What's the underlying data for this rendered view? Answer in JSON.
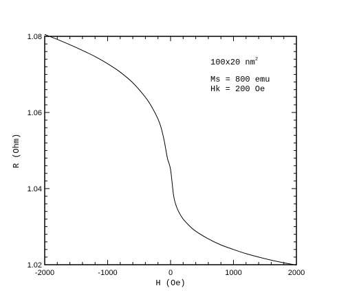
{
  "chart_data": {
    "type": "line",
    "title": "",
    "xlabel": "H (Oe)",
    "ylabel": "R (Ohm)",
    "xlim": [
      -2000,
      2000
    ],
    "ylim": [
      1.02,
      1.08
    ],
    "x_ticks": [
      -2000,
      -1000,
      0,
      1000,
      2000
    ],
    "y_ticks": [
      1.02,
      1.04,
      1.06,
      1.08
    ],
    "x_tick_labels": [
      "-2000",
      "-1000",
      "0",
      "1000",
      "2000"
    ],
    "y_tick_labels": [
      "1.02",
      "1.04",
      "1.06",
      "1.08"
    ],
    "grid": false,
    "annotations": {
      "geometry": "100x20 nm",
      "geometry_sup": "2",
      "ms": "Ms = 800 emu",
      "hk": "Hk = 200 Oe"
    },
    "series": [
      {
        "x": [
          -2000,
          -1800,
          -1600,
          -1400,
          -1200,
          -1000,
          -800,
          -600,
          -400,
          -300,
          -200,
          -150,
          -100,
          -50,
          0,
          50,
          100,
          150,
          200,
          300,
          400,
          600,
          800,
          1000,
          1200,
          1400,
          1600,
          1800,
          2000
        ],
        "y": [
          1.0805,
          1.0792,
          1.0778,
          1.0763,
          1.0747,
          1.0728,
          1.0706,
          1.0678,
          1.064,
          1.0615,
          1.0583,
          1.056,
          1.0525,
          1.048,
          1.045,
          1.038,
          1.035,
          1.0333,
          1.032,
          1.0302,
          1.0288,
          1.0268,
          1.0252,
          1.024,
          1.0229,
          1.022,
          1.0212,
          1.0205,
          1.0199
        ],
        "color": "#000000"
      }
    ]
  }
}
